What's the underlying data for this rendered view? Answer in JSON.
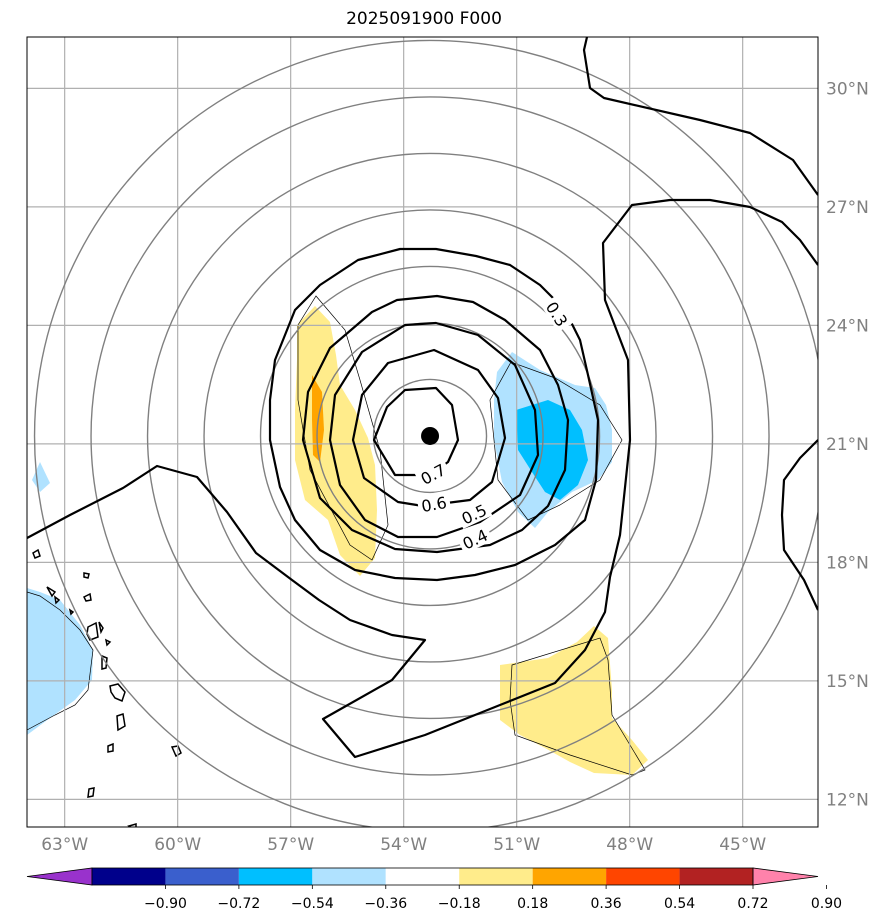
{
  "title": "2025091900 F000",
  "map": {
    "lon_range": [
      -64,
      -43
    ],
    "lat_range": [
      11.3,
      31.3
    ],
    "lon_ticks": [
      {
        "value": -63,
        "label": "63°W"
      },
      {
        "value": -60,
        "label": "60°W"
      },
      {
        "value": -57,
        "label": "57°W"
      },
      {
        "value": -54,
        "label": "54°W"
      },
      {
        "value": -51,
        "label": "51°W"
      },
      {
        "value": -48,
        "label": "48°W"
      },
      {
        "value": -45,
        "label": "45°W"
      }
    ],
    "lat_ticks": [
      {
        "value": 12,
        "label": "12°N"
      },
      {
        "value": 15,
        "label": "15°N"
      },
      {
        "value": 18,
        "label": "18°N"
      },
      {
        "value": 21,
        "label": "21°N"
      },
      {
        "value": 24,
        "label": "24°N"
      },
      {
        "value": 27,
        "label": "27°N"
      },
      {
        "value": 30,
        "label": "30°N"
      }
    ],
    "storm_center": {
      "lon": -53.3,
      "lat": 21.2
    },
    "range_rings_deg": [
      1.5,
      3,
      4.5,
      6,
      7.5,
      9,
      10.5
    ],
    "contour_labels": [
      "0.3",
      "0.4",
      "0.5",
      "0.6",
      "0.7"
    ]
  },
  "colorbar": {
    "colors": [
      "#9932CC",
      "#00008B",
      "#3A5FCD",
      "#00BFFF",
      "#B0E2FF",
      "#FFFFFF",
      "#FFEC8B",
      "#FFA500",
      "#FF4500",
      "#B22222",
      "#FF82AB"
    ],
    "labels": [
      "−0.90",
      "−0.72",
      "−0.54",
      "−0.36",
      "−0.18",
      "0.18",
      "0.36",
      "0.54",
      "0.72",
      "0.90"
    ]
  },
  "colors": {
    "gridline": "#b0b0b0",
    "ring": "#808080",
    "contour": "#000000",
    "fill_light_blue": "#B0E2FF",
    "fill_blue": "#00BFFF",
    "fill_yellow": "#FFEC8B",
    "fill_orange": "#FFA500"
  }
}
